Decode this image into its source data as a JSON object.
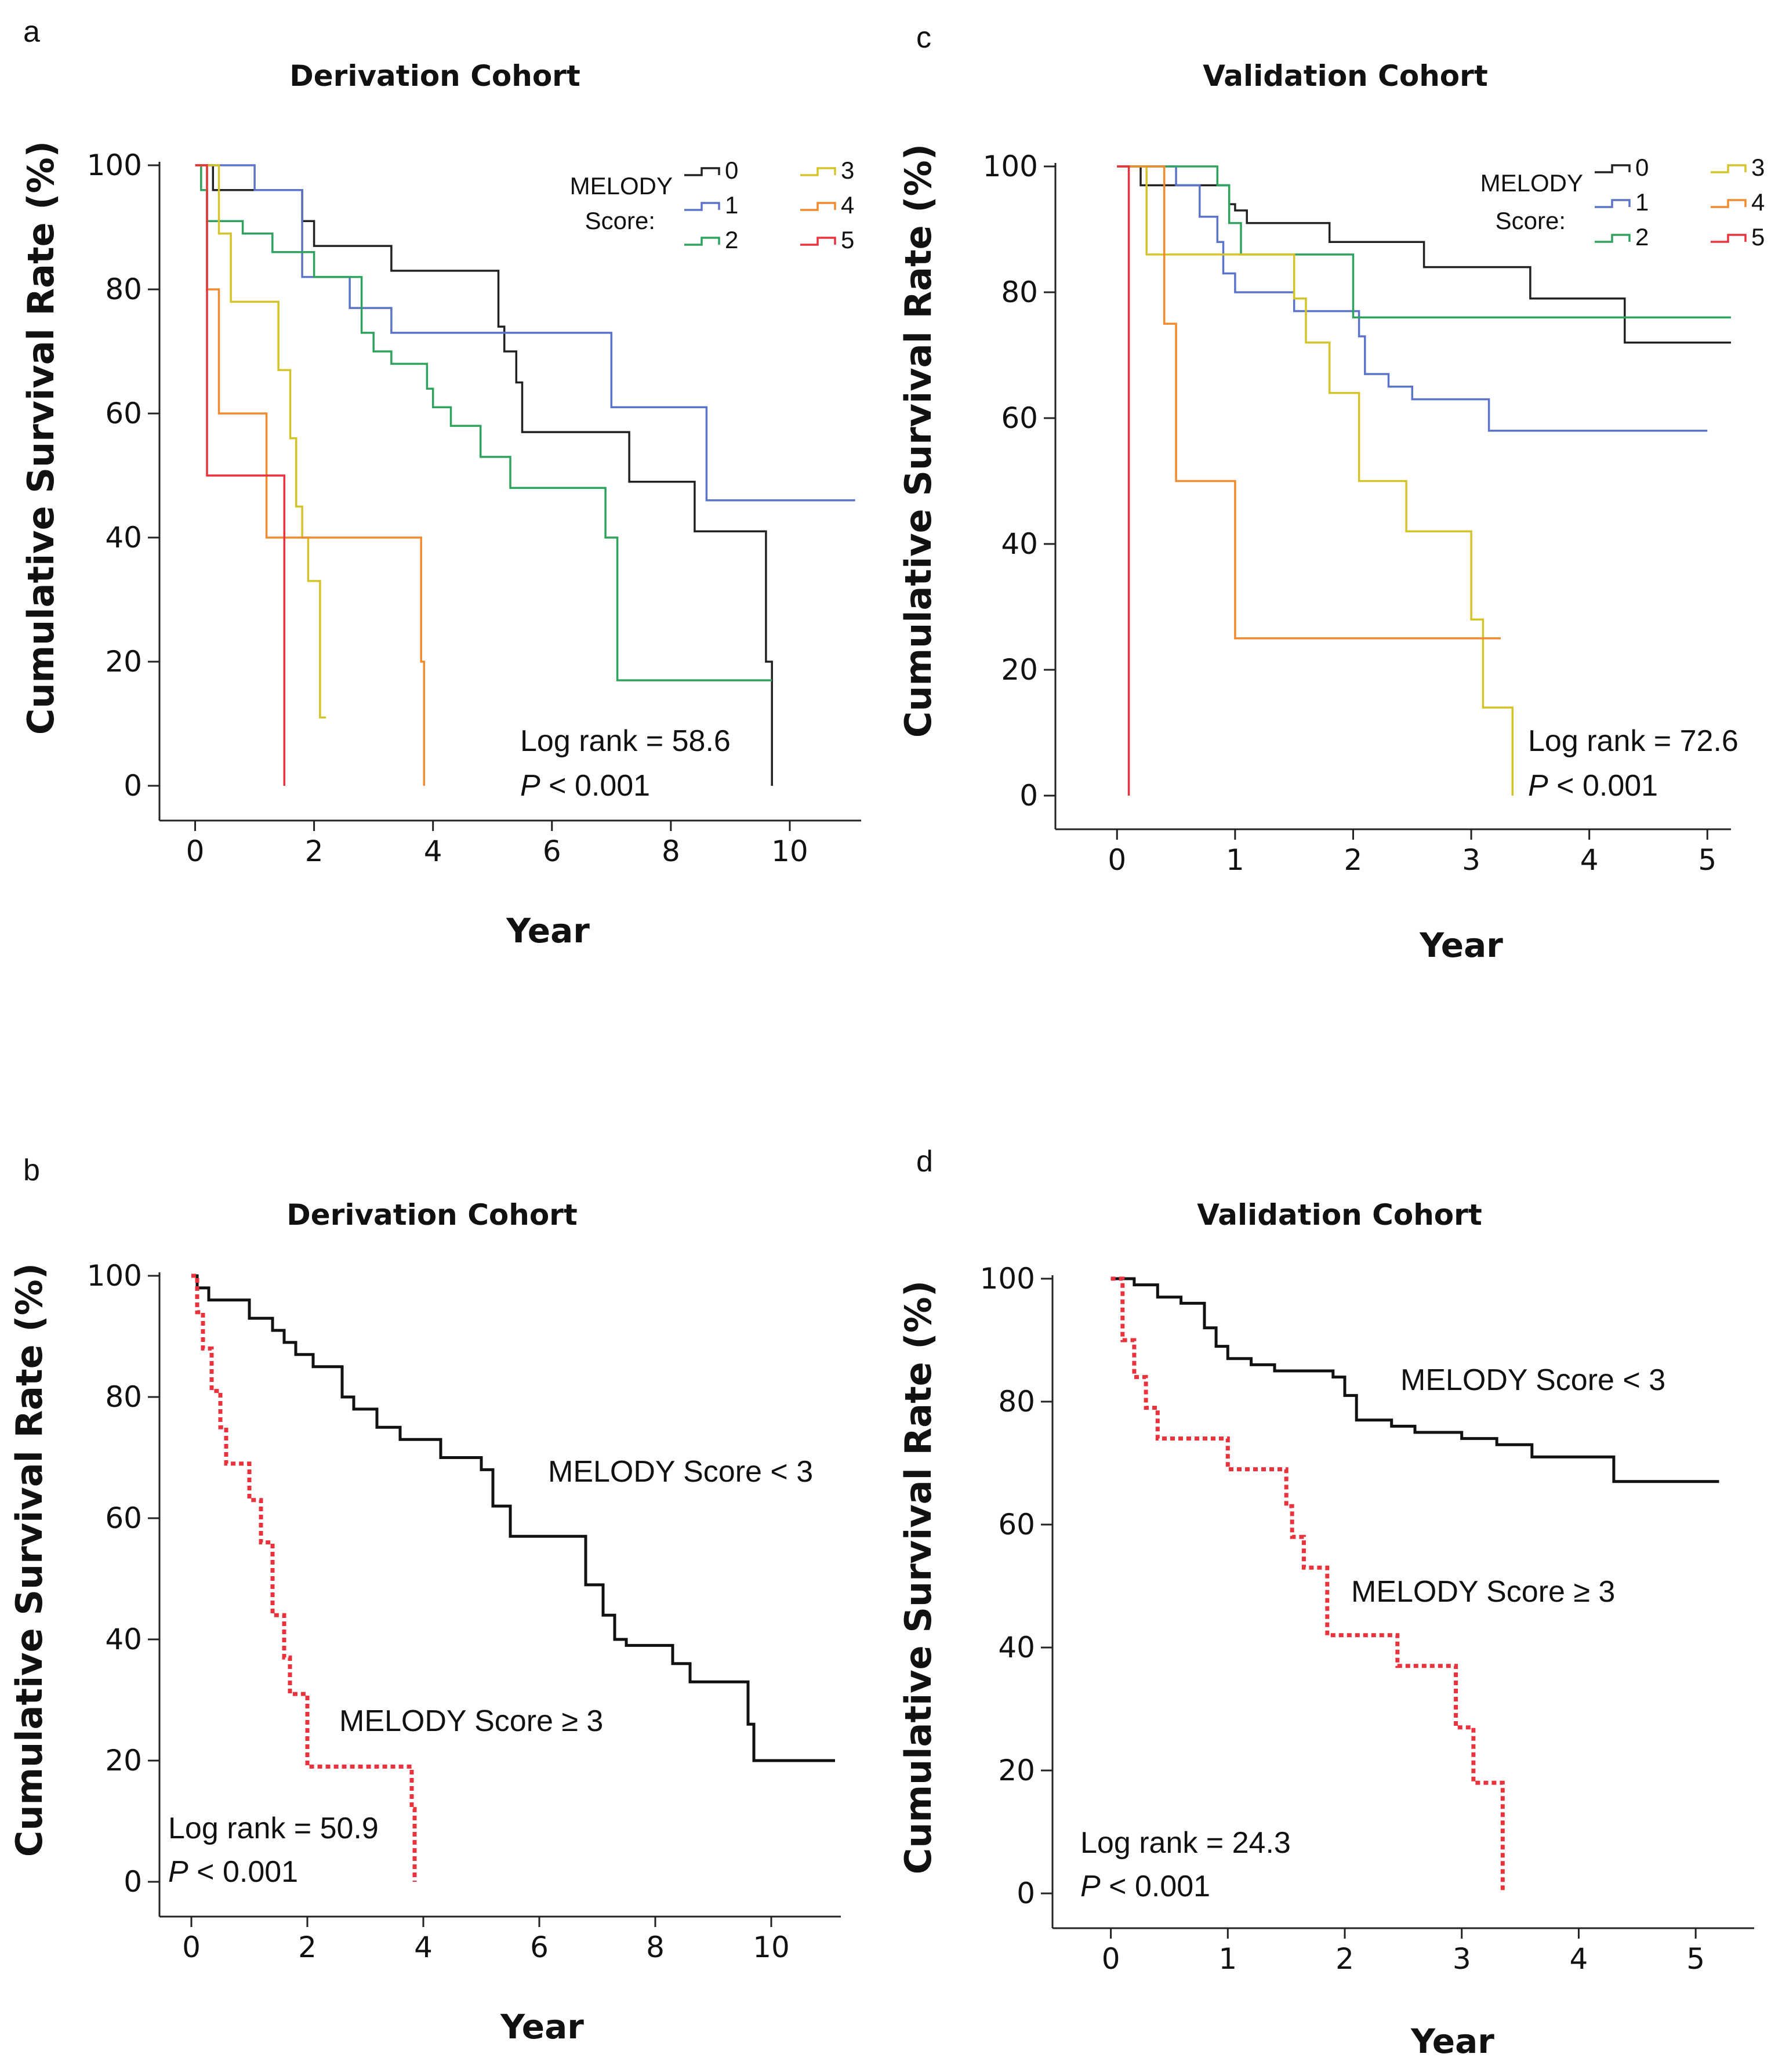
{
  "chart_data": [
    {
      "panel": "a",
      "type": "line",
      "title": "Derivation Cohort",
      "xlabel": "Year",
      "ylabel": "Cumulative Survival Rate (%)",
      "xlim": [
        -0.6,
        11.2
      ],
      "ylim": [
        0,
        100
      ],
      "xticks": [
        "0",
        "2",
        "4",
        "6",
        "8",
        "10"
      ],
      "yticks": [
        "0",
        "20",
        "40",
        "60",
        "80",
        "100"
      ],
      "legend_title": [
        "MELODY",
        "Score:"
      ],
      "annotation": {
        "line1": "Log rank = 58.6",
        "p_symbol": "P",
        "p_rest": " < 0.001"
      },
      "series": [
        {
          "name": "0",
          "color": "#222222",
          "x": [
            0,
            0.3,
            1,
            1.2,
            1.8,
            2,
            2.5,
            3.3,
            5.1,
            5.2,
            5.4,
            5.5,
            6,
            7.3,
            8.4,
            9.6,
            9.7
          ],
          "y": [
            100,
            96,
            96,
            96,
            91,
            87,
            87,
            83,
            74,
            70,
            65,
            57,
            57,
            49,
            41,
            20,
            0
          ]
        },
        {
          "name": "1",
          "color": "#5b73c9",
          "x": [
            0,
            1,
            1.8,
            2.6,
            3.3,
            7,
            8.6,
            11.1
          ],
          "y": [
            100,
            96,
            82,
            77,
            73,
            61,
            46,
            46
          ]
        },
        {
          "name": "2",
          "color": "#2fa35e",
          "x": [
            0,
            0.1,
            0.2,
            0.8,
            1.3,
            2,
            2.8,
            3,
            3.3,
            3.9,
            4,
            4.3,
            4.8,
            5.3,
            6.8,
            6.9,
            7.1,
            9.7
          ],
          "y": [
            100,
            96,
            91,
            89,
            86,
            82,
            73,
            70,
            68,
            64,
            61,
            58,
            53,
            48,
            48,
            40,
            17,
            17
          ]
        },
        {
          "name": "3",
          "color": "#d4c42a",
          "x": [
            0,
            0.4,
            0.6,
            1.4,
            1.6,
            1.7,
            1.8,
            1.9,
            2.1,
            2.2
          ],
          "y": [
            100,
            89,
            78,
            67,
            56,
            45,
            40,
            33,
            11,
            11
          ]
        },
        {
          "name": "4",
          "color": "#f28a2e",
          "x": [
            0,
            0.2,
            0.4,
            1.2,
            3.8,
            3.85
          ],
          "y": [
            100,
            80,
            60,
            40,
            20,
            0
          ]
        },
        {
          "name": "5",
          "color": "#e8323c",
          "x": [
            0,
            0.2,
            1.5
          ],
          "y": [
            100,
            50,
            0
          ]
        }
      ]
    },
    {
      "panel": "c",
      "type": "line",
      "title": "Validation Cohort",
      "xlabel": "Year",
      "ylabel": "Cumulative Survival Rate (%)",
      "xlim": [
        -0.35,
        5.2
      ],
      "ylim": [
        0,
        100
      ],
      "xticks": [
        "0",
        "1",
        "2",
        "3",
        "4",
        "5"
      ],
      "yticks": [
        "0",
        "20",
        "40",
        "60",
        "80",
        "100"
      ],
      "legend_title": [
        "MELODY",
        "Score:"
      ],
      "annotation": {
        "line1": "Log rank = 72.6",
        "p_symbol": "P",
        "p_rest": " < 0.001"
      },
      "series": [
        {
          "name": "0",
          "color": "#222222",
          "x": [
            0,
            0.2,
            0.95,
            1,
            1.1,
            1.8,
            2.6,
            3.5,
            4.3,
            5.2
          ],
          "y": [
            100,
            97,
            94,
            93,
            91,
            88,
            84,
            79,
            72,
            72
          ]
        },
        {
          "name": "1",
          "color": "#5b73c9",
          "x": [
            0,
            0.5,
            0.7,
            0.85,
            0.9,
            1,
            1.5,
            2,
            2.05,
            2.1,
            2.3,
            2.5,
            3.15,
            5
          ],
          "y": [
            100,
            97,
            92,
            88,
            83,
            80,
            77,
            77,
            73,
            67,
            65,
            63,
            58,
            58
          ]
        },
        {
          "name": "2",
          "color": "#2fa35e",
          "x": [
            0,
            0.85,
            0.95,
            1.05,
            1.8,
            2,
            5.2
          ],
          "y": [
            100,
            97,
            91,
            86,
            86,
            76,
            76
          ]
        },
        {
          "name": "3",
          "color": "#d4c42a",
          "x": [
            0,
            0.25,
            1.5,
            1.6,
            1.8,
            2.05,
            2.45,
            3,
            3.1,
            3.35
          ],
          "y": [
            100,
            86,
            79,
            72,
            64,
            50,
            42,
            28,
            14,
            0
          ]
        },
        {
          "name": "4",
          "color": "#f28a2e",
          "x": [
            0,
            0.4,
            0.5,
            1,
            3.25
          ],
          "y": [
            100,
            75,
            50,
            25,
            25
          ]
        },
        {
          "name": "5",
          "color": "#e8323c",
          "x": [
            0,
            0.1,
            0.1
          ],
          "y": [
            100,
            100,
            0
          ]
        }
      ]
    },
    {
      "panel": "b",
      "type": "line",
      "title": "Derivation Cohort",
      "xlabel": "Year",
      "ylabel": "Cumulative Survival Rate (%)",
      "xlim": [
        -0.6,
        11.2
      ],
      "ylim": [
        0,
        100
      ],
      "xticks": [
        "0",
        "2",
        "4",
        "6",
        "8",
        "10"
      ],
      "yticks": [
        "0",
        "20",
        "40",
        "60",
        "80",
        "100"
      ],
      "annotation": {
        "line1": "Log rank = 50.9",
        "p_symbol": "P",
        "p_rest": " < 0.001"
      },
      "series": [
        {
          "name": "MELODY Score < 3",
          "color": "#111111",
          "dashed": false,
          "x": [
            0,
            0.1,
            0.3,
            1,
            1.4,
            1.6,
            1.8,
            2.1,
            2.6,
            2.8,
            3.2,
            3.6,
            4.3,
            5,
            5.2,
            5.5,
            6.8,
            7.1,
            7.3,
            7.5,
            8.3,
            8.6,
            9.6,
            9.7,
            11.1
          ],
          "y": [
            100,
            98,
            96,
            93,
            91,
            89,
            87,
            85,
            80,
            78,
            75,
            73,
            70,
            68,
            62,
            57,
            49,
            44,
            40,
            39,
            36,
            33,
            26,
            20,
            20
          ]
        },
        {
          "name": "MELODY Score ≥ 3",
          "color": "#e8323c",
          "dashed": true,
          "x": [
            0,
            0.1,
            0.2,
            0.35,
            0.5,
            0.6,
            1,
            1.2,
            1.4,
            1.6,
            1.7,
            2,
            3.8,
            3.85
          ],
          "y": [
            100,
            94,
            88,
            81,
            75,
            69,
            63,
            56,
            44,
            37,
            31,
            19,
            12,
            0
          ]
        }
      ]
    },
    {
      "panel": "d",
      "type": "line",
      "title": "Validation Cohort",
      "xlabel": "Year",
      "ylabel": "Cumulative Survival Rate (%)",
      "xlim": [
        -0.35,
        5.5
      ],
      "ylim": [
        0,
        100
      ],
      "xticks": [
        "0",
        "1",
        "2",
        "3",
        "4",
        "5"
      ],
      "yticks": [
        "0",
        "20",
        "40",
        "60",
        "80",
        "100"
      ],
      "annotation": {
        "line1": "Log rank = 24.3",
        "p_symbol": "P",
        "p_rest": " < 0.001"
      },
      "series": [
        {
          "name": "MELODY Score < 3",
          "color": "#111111",
          "dashed": false,
          "x": [
            0,
            0.2,
            0.4,
            0.6,
            0.8,
            0.9,
            1,
            1.2,
            1.4,
            1.9,
            2,
            2.1,
            2.4,
            2.6,
            3,
            3.3,
            3.6,
            4.3,
            5.2
          ],
          "y": [
            100,
            99,
            97,
            96,
            92,
            89,
            87,
            86,
            85,
            84,
            81,
            77,
            76,
            75,
            74,
            73,
            71,
            67,
            67
          ]
        },
        {
          "name": "MELODY Score ≥ 3",
          "color": "#e8323c",
          "dashed": true,
          "x": [
            0,
            0.1,
            0.2,
            0.3,
            0.4,
            0.5,
            1,
            1.5,
            1.55,
            1.65,
            1.85,
            2.45,
            2.95,
            3.1,
            3.35
          ],
          "y": [
            100,
            90,
            84,
            79,
            74,
            74,
            69,
            63,
            58,
            53,
            42,
            37,
            27,
            18,
            0
          ]
        }
      ]
    }
  ]
}
